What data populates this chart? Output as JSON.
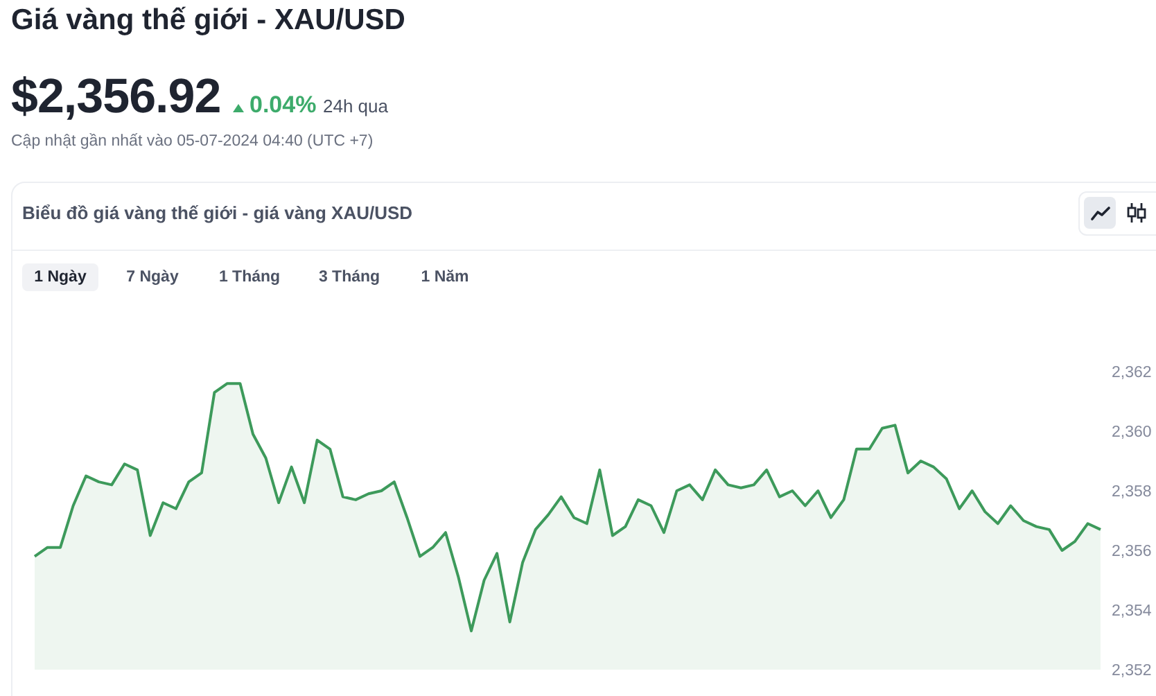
{
  "chart_data": {
    "type": "area",
    "title": "Giá vàng thế giới - XAU/USD",
    "subtitle": "Biểu đồ giá vàng thế giới - giá vàng XAU/USD",
    "annotations": [
      "$2,356.92",
      "0.04%",
      "24h qua",
      "Cập nhật gần nhất vào 05-07-2024 04:40 (UTC +7)",
      "1 Ngày",
      "7 Ngày",
      "1 Tháng",
      "3 Tháng",
      "1 Năm"
    ],
    "categories": [
      null,
      null,
      null,
      null,
      null,
      null,
      null,
      null,
      null,
      null,
      null,
      null,
      null,
      null,
      null,
      null,
      null,
      null,
      null,
      null,
      null,
      null,
      null,
      null,
      null,
      null,
      null,
      null,
      null,
      null,
      null,
      null,
      null,
      null,
      null,
      null,
      null,
      null,
      null,
      null,
      null,
      null,
      null,
      null,
      null,
      null,
      null,
      null,
      null,
      null,
      null,
      null,
      null,
      null,
      null,
      null,
      null,
      null,
      null,
      null,
      null,
      null,
      null,
      null,
      null,
      null,
      null,
      null,
      null,
      null,
      null,
      null,
      null,
      null,
      null,
      null,
      null,
      null,
      null,
      null,
      null,
      null,
      null,
      null
    ],
    "values": [
      2355.8,
      2356.1,
      2356.1,
      2357.5,
      2358.5,
      2358.3,
      2358.2,
      2358.9,
      2358.7,
      2356.5,
      2357.6,
      2357.4,
      2358.3,
      2358.6,
      2361.3,
      2361.6,
      2361.6,
      2359.9,
      2359.1,
      2357.6,
      2358.8,
      2357.6,
      2359.7,
      2359.4,
      2357.8,
      2357.7,
      2357.9,
      2358.0,
      2358.3,
      2357.1,
      2355.8,
      2356.1,
      2356.6,
      2355.1,
      2353.3,
      2355.0,
      2355.9,
      2353.6,
      2355.6,
      2356.7,
      2357.2,
      2357.8,
      2357.1,
      2356.9,
      2358.7,
      2356.5,
      2356.8,
      2357.7,
      2357.5,
      2356.6,
      2358.0,
      2358.2,
      2357.7,
      2358.7,
      2358.2,
      2358.1,
      2358.2,
      2358.7,
      2357.8,
      2358.0,
      2357.5,
      2358.0,
      2357.1,
      2357.7,
      2359.4,
      2359.4,
      2360.1,
      2360.2,
      2358.6,
      2359.0,
      2358.8,
      2358.4,
      2357.4,
      2358.0,
      2357.3,
      2356.9,
      2357.5,
      2357.0,
      2356.8,
      2356.7,
      2356.0,
      2356.3,
      2356.9,
      2356.7
    ],
    "color": "#3d9a5b",
    "ylim": [
      2352,
      2362
    ],
    "yticks": [
      {
        "value": 2352,
        "label": "2,352"
      },
      {
        "value": 2354,
        "label": "2,354"
      },
      {
        "value": 2356,
        "label": "2,356"
      },
      {
        "value": 2358,
        "label": "2,358"
      },
      {
        "value": 2360,
        "label": "2,360"
      },
      {
        "value": 2362,
        "label": "2,362"
      }
    ],
    "tick_labels": "y"
  }
}
